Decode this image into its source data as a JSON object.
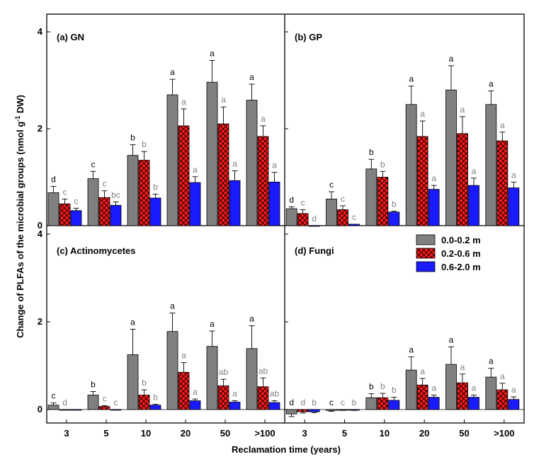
{
  "figure": {
    "ylabel": "Change of PLFAs of the microbial groups (nmol g",
    "ylabel_sup": "-1",
    "ylabel_tail": " DW)",
    "xlabel": "Reclamation time (years)"
  },
  "colors": {
    "series_0": "#808080",
    "series_1": "#ff1a1a",
    "series_2": "#1a1aff",
    "hatch": "#000000",
    "sig_first": "#000000",
    "sig_other": "#7f7f7f"
  },
  "legend": {
    "placement": "top-right of panel (d)",
    "items": [
      "0.0-0.2 m",
      "0.2-0.6 m",
      "0.6-2.0 m"
    ]
  },
  "chart_data": [
    {
      "type": "bar",
      "title": "(a) GN",
      "categories": [
        "3",
        "5",
        "10",
        "20",
        "50",
        ">100"
      ],
      "ylim": [
        0,
        4.35
      ],
      "yticks": [
        0,
        2,
        4
      ],
      "series": [
        {
          "name": "0.0-0.2 m",
          "values": [
            0.68,
            0.97,
            1.45,
            2.7,
            2.96,
            2.59
          ],
          "errors": [
            0.13,
            0.15,
            0.22,
            0.32,
            0.45,
            0.33
          ],
          "letters": [
            "d",
            "c",
            "b",
            "a",
            "a",
            "a"
          ]
        },
        {
          "name": "0.2-0.6 m",
          "values": [
            0.45,
            0.58,
            1.35,
            2.06,
            2.1,
            1.84
          ],
          "errors": [
            0.1,
            0.14,
            0.18,
            0.35,
            0.35,
            0.22
          ],
          "letters": [
            "c",
            "c",
            "b",
            "a",
            "a",
            "a"
          ]
        },
        {
          "name": "0.6-2.0 m",
          "values": [
            0.31,
            0.42,
            0.57,
            0.89,
            0.93,
            0.9
          ],
          "errors": [
            0.05,
            0.07,
            0.08,
            0.12,
            0.2,
            0.2
          ],
          "letters": [
            "c",
            "bc",
            "b",
            "a",
            "a",
            "a"
          ]
        }
      ]
    },
    {
      "type": "bar",
      "title": "(b) GP",
      "categories": [
        "3",
        "5",
        "10",
        "20",
        "50",
        ">100"
      ],
      "ylim": [
        0,
        4.35
      ],
      "yticks": [
        0,
        2,
        4
      ],
      "series": [
        {
          "name": "0.0-0.2 m",
          "values": [
            0.35,
            0.55,
            1.17,
            2.5,
            2.8,
            2.5
          ],
          "errors": [
            0.04,
            0.15,
            0.2,
            0.38,
            0.5,
            0.28
          ],
          "letters": [
            "d",
            "c",
            "b",
            "a",
            "a",
            "a"
          ]
        },
        {
          "name": "0.2-0.6 m",
          "values": [
            0.25,
            0.33,
            1.0,
            1.84,
            1.9,
            1.75
          ],
          "errors": [
            0.08,
            0.08,
            0.12,
            0.32,
            0.35,
            0.18
          ],
          "letters": [
            "c",
            "c",
            "b",
            "a",
            "a",
            "a"
          ]
        },
        {
          "name": "0.6-2.0 m",
          "values": [
            0.0,
            0.03,
            0.28,
            0.75,
            0.83,
            0.78
          ],
          "errors": [
            0,
            0,
            0.02,
            0.08,
            0.15,
            0.12
          ],
          "letters": [
            "d",
            "c",
            "b",
            "a",
            "a",
            "a"
          ]
        }
      ]
    },
    {
      "type": "bar",
      "title": "(c) Actinomycetes",
      "categories": [
        "3",
        "5",
        "10",
        "20",
        "50",
        ">100"
      ],
      "ylim": [
        -0.3,
        4.35
      ],
      "yticks": [
        0,
        2,
        4
      ],
      "series": [
        {
          "name": "0.0-0.2 m",
          "values": [
            0.1,
            0.33,
            1.25,
            1.78,
            1.44,
            1.39
          ],
          "errors": [
            0.05,
            0.08,
            0.58,
            0.42,
            0.35,
            0.52
          ],
          "letters": [
            "c",
            "b",
            "a",
            "a",
            "a",
            "a"
          ]
        },
        {
          "name": "0.2-0.6 m",
          "values": [
            0.0,
            0.07,
            0.33,
            0.85,
            0.54,
            0.52
          ],
          "errors": [
            0,
            0.02,
            0.12,
            0.22,
            0.15,
            0.2
          ],
          "letters": [
            "d",
            "c",
            "b",
            "a",
            "ab",
            "ab"
          ]
        },
        {
          "name": "0.6-2.0 m",
          "values": [
            0.0,
            0.0,
            0.1,
            0.2,
            0.17,
            0.16
          ],
          "errors": [
            0,
            0,
            0.02,
            0.04,
            0.03,
            0.04
          ],
          "letters": [
            "",
            "c",
            "b",
            "a",
            "a",
            "ab"
          ]
        }
      ]
    },
    {
      "type": "bar",
      "title": "(d) Fungi",
      "categories": [
        "3",
        "5",
        "10",
        "20",
        "50",
        ">100"
      ],
      "ylim": [
        -0.3,
        4.35
      ],
      "yticks": [
        0,
        2,
        4
      ],
      "series": [
        {
          "name": "0.0-0.2 m",
          "values": [
            -0.1,
            -0.02,
            0.27,
            0.9,
            1.03,
            0.74
          ],
          "errors": [
            0.06,
            0.02,
            0.09,
            0.3,
            0.4,
            0.2
          ],
          "letters": [
            "d",
            "c",
            "b",
            "a",
            "a",
            "a"
          ]
        },
        {
          "name": "0.2-0.6 m",
          "values": [
            -0.05,
            -0.01,
            0.27,
            0.56,
            0.61,
            0.45
          ],
          "errors": [
            0.03,
            0.01,
            0.1,
            0.15,
            0.2,
            0.15
          ],
          "letters": [
            "d",
            "c",
            "b",
            "a",
            "a",
            "a"
          ]
        },
        {
          "name": "0.6-2.0 m",
          "values": [
            -0.05,
            -0.01,
            0.21,
            0.28,
            0.28,
            0.23
          ],
          "errors": [
            0.02,
            0.01,
            0.07,
            0.05,
            0.05,
            0.06
          ],
          "letters": [
            "b",
            "b",
            "b",
            "a",
            "a",
            "a"
          ]
        }
      ]
    }
  ]
}
